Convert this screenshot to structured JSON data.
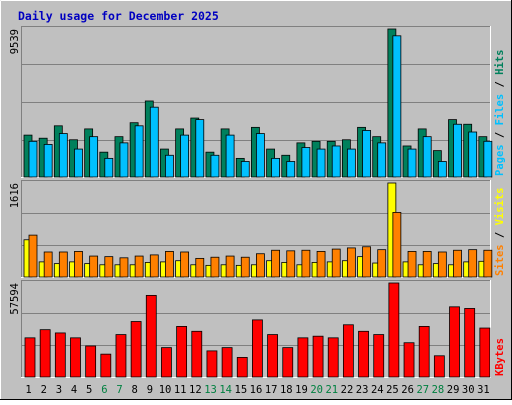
{
  "title": "Daily usage for December 2025",
  "colors": {
    "background": "#c0c0c0",
    "frame_dark": "#808080",
    "frame_light": "#ffffff",
    "title_blue": "#0000c0",
    "hits": "#00805c",
    "files": "#00c0ff",
    "pages": "#00c0ff",
    "visits": "#ffff00",
    "sites": "#ff8000",
    "kbytes": "#ff0000",
    "weekday_label": "#000000",
    "weekend_label": "#008040",
    "grid": "#808080"
  },
  "chart_data": [
    {
      "type": "bar",
      "panel": "hits-files",
      "categories": [
        "1",
        "2",
        "3",
        "4",
        "5",
        "6",
        "7",
        "8",
        "9",
        "10",
        "11",
        "12",
        "13",
        "14",
        "15",
        "16",
        "17",
        "18",
        "19",
        "20",
        "21",
        "22",
        "23",
        "24",
        "25",
        "26",
        "27",
        "28",
        "29",
        "30",
        "31"
      ],
      "y_max_label": "9539",
      "ylim": [
        0,
        9539
      ],
      "legend": [
        "Pages",
        "Files",
        "Hits"
      ],
      "series": [
        {
          "name": "Hits",
          "values": [
            2700,
            2500,
            3300,
            2400,
            3100,
            1600,
            2600,
            3500,
            4900,
            1800,
            3100,
            3800,
            1600,
            3100,
            1200,
            3200,
            1800,
            1400,
            2200,
            2300,
            2300,
            2400,
            3200,
            2600,
            9539,
            2000,
            3100,
            1700,
            3700,
            3400,
            2600
          ]
        },
        {
          "name": "Files",
          "values": [
            2300,
            2100,
            2800,
            1800,
            2600,
            1200,
            2200,
            3300,
            4500,
            1400,
            2700,
            3700,
            1400,
            2700,
            1000,
            2800,
            1200,
            1000,
            1900,
            1800,
            2000,
            1800,
            3000,
            2200,
            9100,
            1800,
            2600,
            1000,
            3400,
            2900,
            2300
          ]
        }
      ]
    },
    {
      "type": "bar",
      "panel": "visits-sites",
      "categories": [
        "1",
        "2",
        "3",
        "4",
        "5",
        "6",
        "7",
        "8",
        "9",
        "10",
        "11",
        "12",
        "13",
        "14",
        "15",
        "16",
        "17",
        "18",
        "19",
        "20",
        "21",
        "22",
        "23",
        "24",
        "25",
        "26",
        "27",
        "28",
        "29",
        "30",
        "31"
      ],
      "y_max_label": "1616",
      "ylim": [
        0,
        1616
      ],
      "legend": [
        "Sites",
        "Visits"
      ],
      "series": [
        {
          "name": "Visits",
          "values": [
            640,
            260,
            230,
            260,
            230,
            210,
            210,
            210,
            250,
            260,
            280,
            210,
            200,
            210,
            200,
            210,
            280,
            250,
            210,
            250,
            260,
            280,
            350,
            240,
            1616,
            260,
            210,
            230,
            210,
            260,
            270
          ]
        },
        {
          "name": "Sites",
          "values": [
            720,
            430,
            430,
            440,
            360,
            350,
            330,
            360,
            380,
            440,
            430,
            320,
            340,
            360,
            340,
            400,
            460,
            450,
            460,
            440,
            480,
            500,
            520,
            470,
            1110,
            440,
            440,
            430,
            460,
            470,
            460
          ]
        }
      ]
    },
    {
      "type": "bar",
      "panel": "kbytes",
      "categories": [
        "1",
        "2",
        "3",
        "4",
        "5",
        "6",
        "7",
        "8",
        "9",
        "10",
        "11",
        "12",
        "13",
        "14",
        "15",
        "16",
        "17",
        "18",
        "19",
        "20",
        "21",
        "22",
        "23",
        "24",
        "25",
        "26",
        "27",
        "28",
        "29",
        "30",
        "31"
      ],
      "y_max_label": "57594",
      "ylim": [
        0,
        57594
      ],
      "legend": [
        "KBytes"
      ],
      "series": [
        {
          "name": "KBytes",
          "values": [
            24000,
            29000,
            27000,
            24000,
            19000,
            14000,
            26000,
            34000,
            50000,
            18000,
            31000,
            28000,
            16000,
            18000,
            12000,
            35000,
            26000,
            18000,
            24000,
            25000,
            24000,
            32000,
            28000,
            26000,
            57594,
            21000,
            31000,
            13000,
            43000,
            42000,
            30000
          ]
        }
      ]
    }
  ]
}
